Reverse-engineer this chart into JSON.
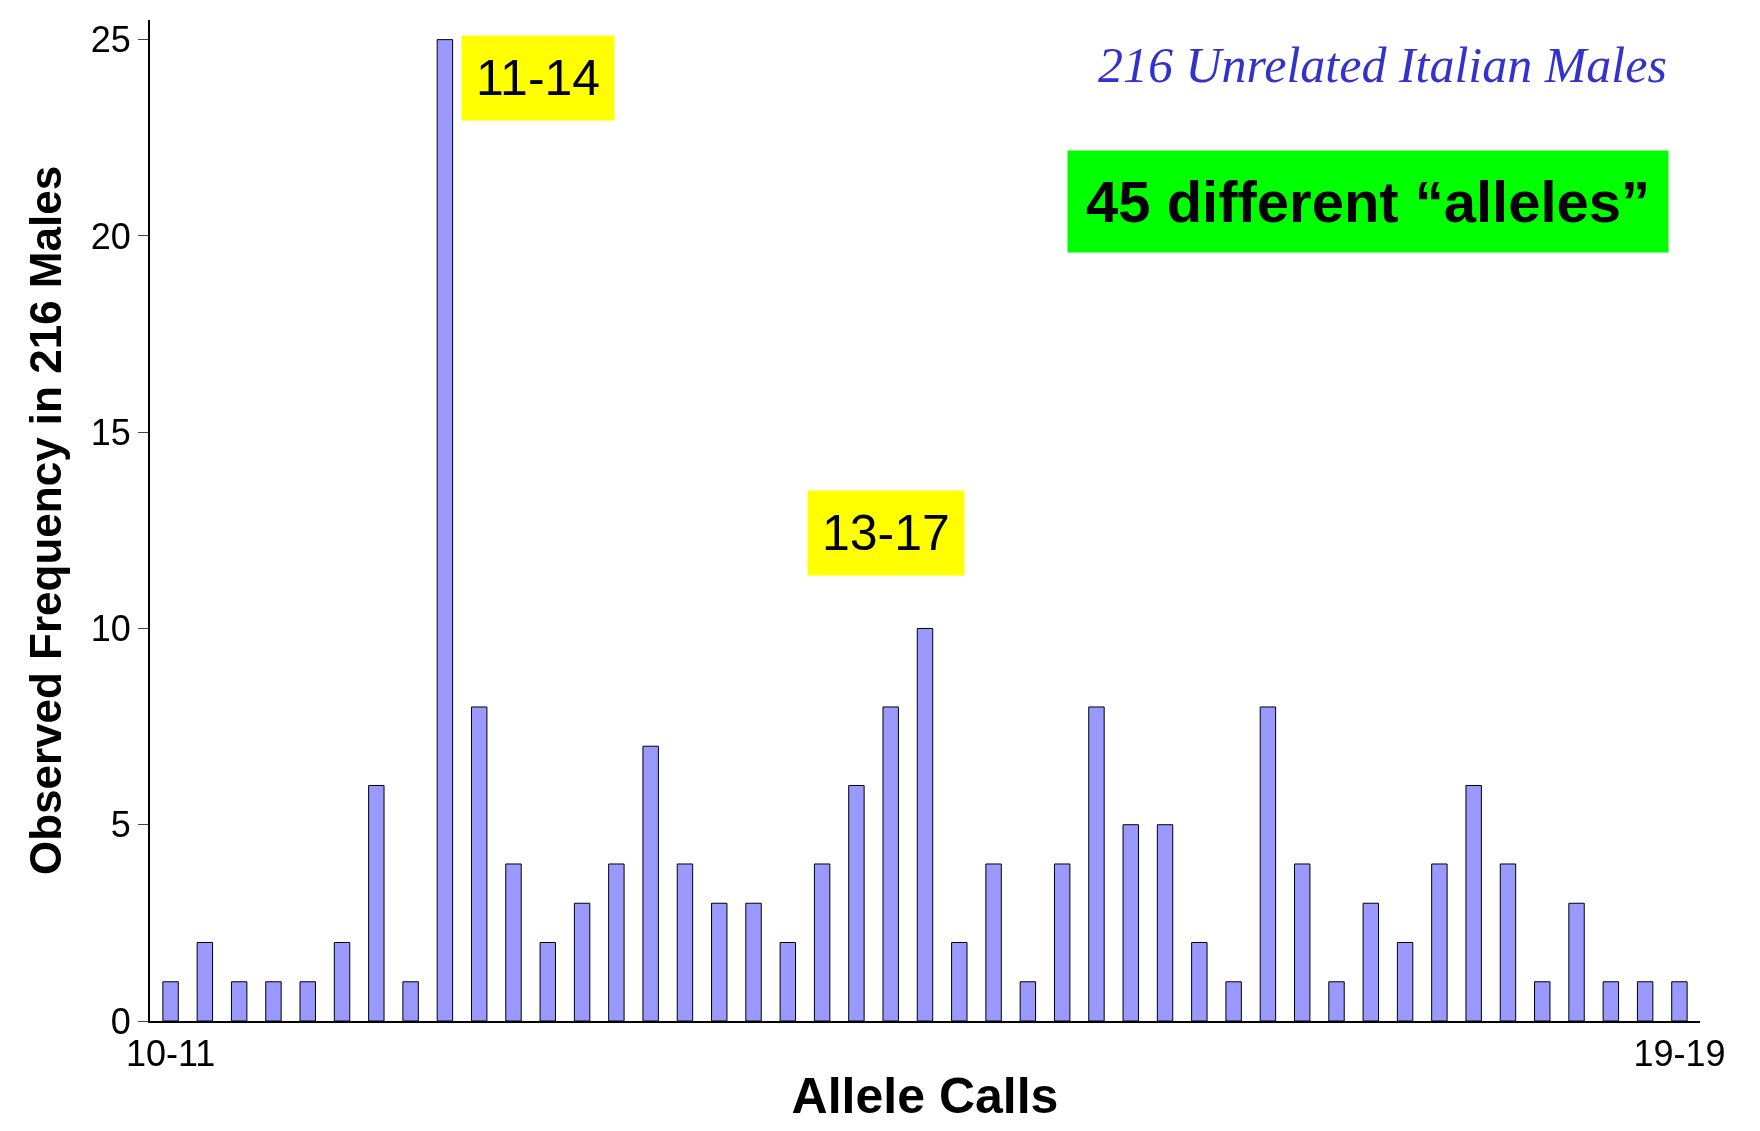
{
  "chart_data": {
    "type": "bar",
    "title": "216 Unrelated Italian Males",
    "subtitle": "45 different “alleles”",
    "xlabel": "Allele Calls",
    "ylabel": "Observed Frequency in 216 Males",
    "categories": [
      "10-11",
      null,
      null,
      null,
      null,
      null,
      null,
      null,
      null,
      null,
      null,
      null,
      null,
      null,
      null,
      null,
      null,
      null,
      null,
      null,
      null,
      null,
      null,
      null,
      null,
      null,
      null,
      null,
      null,
      null,
      null,
      null,
      null,
      null,
      null,
      null,
      null,
      null,
      null,
      null,
      null,
      null,
      null,
      null,
      "19-19"
    ],
    "values": [
      1,
      2,
      1,
      1,
      1,
      2,
      6,
      1,
      25,
      8,
      4,
      2,
      3,
      4,
      7,
      4,
      3,
      3,
      2,
      4,
      6,
      8,
      10,
      2,
      4,
      1,
      4,
      8,
      5,
      5,
      2,
      1,
      8,
      4,
      1,
      3,
      2,
      4,
      6,
      4,
      1,
      3,
      1,
      1,
      1
    ],
    "color": "#9999ff",
    "annotations": [
      "11-14",
      "13-17"
    ],
    "ylim": [
      0,
      25.5
    ],
    "yticks": [
      0,
      5,
      10,
      15,
      20,
      25
    ],
    "legend": false
  }
}
